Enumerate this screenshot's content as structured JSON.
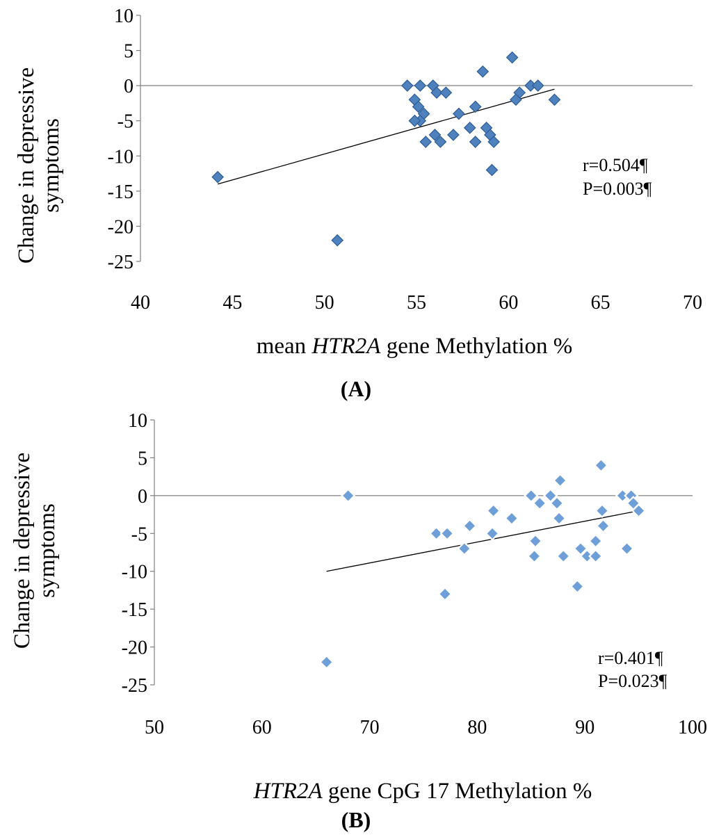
{
  "chart_data": [
    {
      "type": "scatter",
      "panel_label": "(A)",
      "xlabel_pre": "mean ",
      "xlabel_italic": "HTR2A",
      "xlabel_post": " gene Methylation %",
      "ylabel_lines": [
        "Change in depressive",
        "symptoms"
      ],
      "xlim": [
        40,
        70
      ],
      "ylim": [
        -25,
        10
      ],
      "x_ticks": [
        "40",
        "45",
        "50",
        "55",
        "60",
        "65",
        "70"
      ],
      "y_ticks": [
        "10",
        "5",
        "0",
        "-5",
        "-10",
        "-15",
        "-20",
        "-25"
      ],
      "annotations": [
        "r=0.504¶",
        "P=0.003¶"
      ],
      "trendline": {
        "x": [
          44.2,
          62.5
        ],
        "y": [
          -14.0,
          -0.5
        ]
      },
      "points": [
        {
          "x": 44.2,
          "y": -13
        },
        {
          "x": 50.7,
          "y": -22
        },
        {
          "x": 54.5,
          "y": 0
        },
        {
          "x": 55.2,
          "y": 0
        },
        {
          "x": 55.9,
          "y": 0
        },
        {
          "x": 54.9,
          "y": -2
        },
        {
          "x": 55.1,
          "y": -3
        },
        {
          "x": 55.4,
          "y": -4
        },
        {
          "x": 55.2,
          "y": -5
        },
        {
          "x": 54.9,
          "y": -5
        },
        {
          "x": 56.1,
          "y": -1
        },
        {
          "x": 56.6,
          "y": -1
        },
        {
          "x": 56.0,
          "y": -7
        },
        {
          "x": 56.3,
          "y": -8
        },
        {
          "x": 55.5,
          "y": -8
        },
        {
          "x": 57.0,
          "y": -7
        },
        {
          "x": 57.3,
          "y": -4
        },
        {
          "x": 57.9,
          "y": -6
        },
        {
          "x": 58.2,
          "y": -3
        },
        {
          "x": 58.2,
          "y": -8
        },
        {
          "x": 58.6,
          "y": 2
        },
        {
          "x": 58.8,
          "y": -6
        },
        {
          "x": 59.0,
          "y": -7
        },
        {
          "x": 59.2,
          "y": -8
        },
        {
          "x": 59.1,
          "y": -12
        },
        {
          "x": 60.2,
          "y": 4
        },
        {
          "x": 60.6,
          "y": -1
        },
        {
          "x": 60.4,
          "y": -2
        },
        {
          "x": 61.2,
          "y": 0
        },
        {
          "x": 61.6,
          "y": 0
        },
        {
          "x": 62.5,
          "y": -2
        }
      ]
    },
    {
      "type": "scatter",
      "panel_label": "(B)",
      "xlabel_pre": "",
      "xlabel_italic": "HTR2A",
      "xlabel_post": " gene CpG 17 Methylation %",
      "ylabel_lines": [
        "Change in depressive",
        "symptoms"
      ],
      "xlim": [
        50,
        100
      ],
      "ylim": [
        -25,
        10
      ],
      "x_ticks": [
        "50",
        "60",
        "70",
        "80",
        "90",
        "100"
      ],
      "y_ticks": [
        "10",
        "5",
        "0",
        "-5",
        "-10",
        "-15",
        "-20",
        "-25"
      ],
      "annotations": [
        "r=0.401¶",
        "P=0.023¶"
      ],
      "trendline": {
        "x": [
          66,
          95
        ],
        "y": [
          -10,
          -2
        ]
      },
      "points": [
        {
          "x": 66.0,
          "y": -22
        },
        {
          "x": 68.0,
          "y": 0
        },
        {
          "x": 76.2,
          "y": -5
        },
        {
          "x": 77.2,
          "y": -5
        },
        {
          "x": 77.0,
          "y": -13
        },
        {
          "x": 78.8,
          "y": -7
        },
        {
          "x": 79.3,
          "y": -4
        },
        {
          "x": 81.5,
          "y": -2
        },
        {
          "x": 81.4,
          "y": -5
        },
        {
          "x": 83.2,
          "y": -3
        },
        {
          "x": 85.0,
          "y": 0
        },
        {
          "x": 85.4,
          "y": -6
        },
        {
          "x": 85.3,
          "y": -8
        },
        {
          "x": 85.8,
          "y": -1
        },
        {
          "x": 86.8,
          "y": 0
        },
        {
          "x": 87.4,
          "y": -1
        },
        {
          "x": 87.6,
          "y": -3
        },
        {
          "x": 87.7,
          "y": 2
        },
        {
          "x": 88.0,
          "y": -8
        },
        {
          "x": 89.3,
          "y": -12
        },
        {
          "x": 89.6,
          "y": -7
        },
        {
          "x": 90.2,
          "y": -8
        },
        {
          "x": 91.0,
          "y": -6
        },
        {
          "x": 91.0,
          "y": -8
        },
        {
          "x": 91.5,
          "y": 4
        },
        {
          "x": 91.6,
          "y": -2
        },
        {
          "x": 91.7,
          "y": -4
        },
        {
          "x": 93.5,
          "y": 0
        },
        {
          "x": 94.3,
          "y": 0
        },
        {
          "x": 94.5,
          "y": -1
        },
        {
          "x": 93.9,
          "y": -7
        },
        {
          "x": 95.0,
          "y": -2
        }
      ]
    }
  ]
}
